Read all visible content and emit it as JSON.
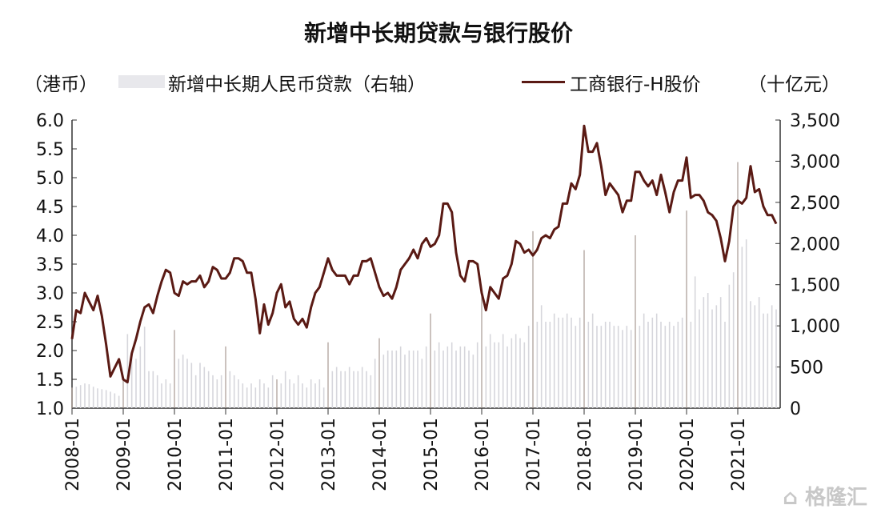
{
  "chart_data": {
    "type": "line",
    "title": "新增中长期贷款与银行股价",
    "ylabel_left": "（港币）",
    "ylabel_right": "（十亿元）",
    "legend": [
      "新增中长期人民币贷款（右轴）",
      "工商银行-H股价"
    ],
    "legend_placement": "top",
    "left_ylim": [
      1.0,
      6.0
    ],
    "right_ylim": [
      0,
      3500
    ],
    "left_ticks": [
      "1.0",
      "1.5",
      "2.0",
      "2.5",
      "3.0",
      "3.5",
      "4.0",
      "4.5",
      "5.0",
      "5.5",
      "6.0"
    ],
    "right_ticks": [
      "0",
      "500",
      "1,000",
      "1,500",
      "2,000",
      "2,500",
      "3,000",
      "3,500"
    ],
    "x_ticks": [
      "2008-01",
      "2009-01",
      "2010-01",
      "2011-01",
      "2012-01",
      "2013-01",
      "2014-01",
      "2015-01",
      "2016-01",
      "2017-01",
      "2018-01",
      "2019-01",
      "2020-01",
      "2021-01"
    ],
    "x_start": "2008-01",
    "series": [
      {
        "name": "工商银行-H股价",
        "type": "line",
        "axis": "left",
        "color": "#5a1a14",
        "values": [
          2.2,
          2.7,
          2.65,
          3.0,
          2.85,
          2.7,
          2.95,
          2.6,
          2.1,
          1.55,
          1.7,
          1.85,
          1.5,
          1.45,
          1.95,
          2.2,
          2.5,
          2.75,
          2.8,
          2.65,
          2.95,
          3.2,
          3.4,
          3.35,
          3.0,
          2.95,
          3.2,
          3.15,
          3.2,
          3.2,
          3.3,
          3.1,
          3.2,
          3.45,
          3.4,
          3.25,
          3.25,
          3.35,
          3.6,
          3.6,
          3.55,
          3.35,
          3.35,
          2.9,
          2.3,
          2.8,
          2.45,
          2.65,
          3.0,
          3.15,
          2.75,
          2.85,
          2.55,
          2.45,
          2.55,
          2.4,
          2.75,
          3.0,
          3.1,
          3.35,
          3.6,
          3.4,
          3.3,
          3.3,
          3.3,
          3.15,
          3.3,
          3.3,
          3.55,
          3.55,
          3.6,
          3.35,
          3.1,
          2.95,
          3.0,
          2.9,
          3.1,
          3.4,
          3.5,
          3.6,
          3.75,
          3.6,
          3.85,
          3.95,
          3.8,
          3.85,
          4.0,
          4.55,
          4.55,
          4.4,
          3.7,
          3.3,
          3.2,
          3.55,
          3.55,
          3.5,
          3.0,
          2.7,
          3.1,
          3.0,
          2.9,
          3.25,
          3.3,
          3.5,
          3.9,
          3.85,
          3.7,
          3.75,
          3.65,
          3.75,
          3.95,
          4.0,
          3.95,
          4.1,
          4.15,
          4.55,
          4.55,
          4.9,
          4.8,
          5.05,
          5.9,
          5.45,
          5.45,
          5.6,
          5.2,
          4.7,
          4.9,
          4.8,
          4.7,
          4.4,
          4.6,
          4.6,
          5.1,
          5.1,
          4.95,
          4.85,
          4.95,
          4.7,
          5.05,
          4.75,
          4.4,
          4.75,
          4.95,
          4.95,
          5.35,
          4.65,
          4.7,
          4.7,
          4.6,
          4.4,
          4.35,
          4.25,
          3.95,
          3.55,
          3.9,
          4.5,
          4.6,
          4.55,
          4.65,
          5.2,
          4.75,
          4.8,
          4.5,
          4.35,
          4.35,
          4.2
        ]
      },
      {
        "name": "新增中长期人民币贷款（右轴）",
        "type": "bar",
        "axis": "right",
        "color": "#c9c9cf",
        "values": [
          250,
          260,
          280,
          300,
          290,
          260,
          240,
          230,
          220,
          200,
          180,
          150,
          380,
          900,
          700,
          600,
          750,
          990,
          450,
          450,
          400,
          300,
          350,
          300,
          950,
          600,
          650,
          600,
          550,
          400,
          550,
          500,
          450,
          400,
          350,
          400,
          750,
          450,
          400,
          350,
          300,
          250,
          300,
          250,
          350,
          300,
          250,
          400,
          350,
          300,
          450,
          350,
          300,
          400,
          300,
          250,
          350,
          300,
          350,
          250,
          800,
          450,
          500,
          450,
          450,
          500,
          450,
          450,
          500,
          450,
          400,
          600,
          850,
          650,
          700,
          700,
          700,
          750,
          650,
          700,
          700,
          700,
          600,
          750,
          1150,
          700,
          800,
          700,
          750,
          800,
          700,
          750,
          750,
          700,
          650,
          800,
          1400,
          750,
          900,
          800,
          800,
          900,
          750,
          850,
          900,
          850,
          800,
          1000,
          2150,
          1050,
          1250,
          1050,
          1050,
          1150,
          1100,
          1100,
          1150,
          1100,
          1000,
          1100,
          1920,
          1050,
          1150,
          1000,
          1000,
          1050,
          1050,
          1000,
          1000,
          950,
          1000,
          950,
          2100,
          1000,
          1150,
          1050,
          1100,
          1150,
          1050,
          1000,
          1050,
          1000,
          1050,
          1100,
          2400,
          1050,
          1600,
          1200,
          1350,
          1400,
          1200,
          1250,
          1350,
          1050,
          1500,
          1650,
          2990,
          1960,
          2050,
          1300,
          1250,
          1350,
          1150,
          1150,
          1250,
          1200
        ]
      }
    ]
  },
  "watermark": "格隆汇"
}
